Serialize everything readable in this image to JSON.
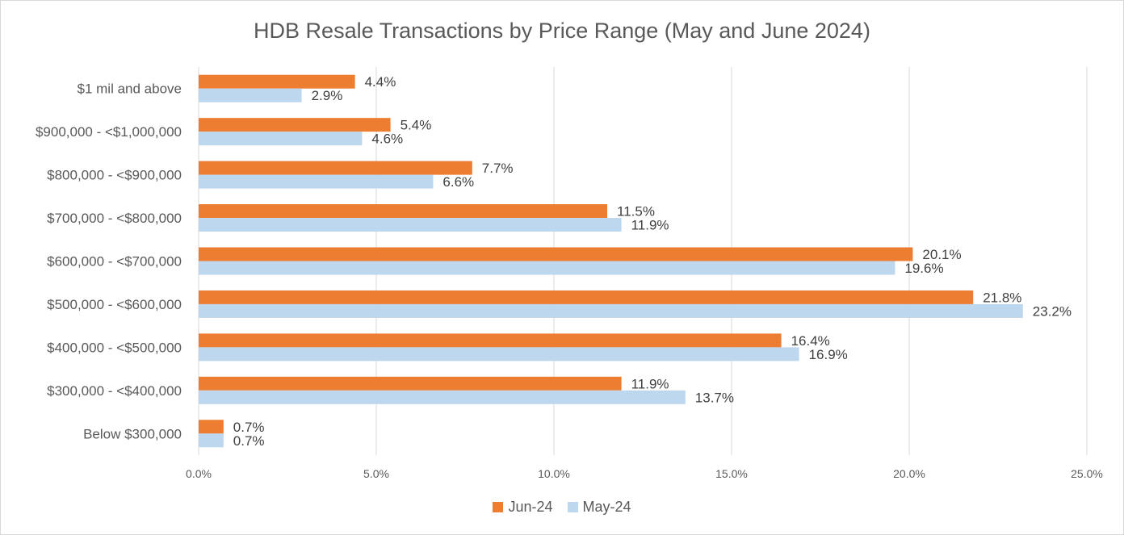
{
  "chart_data": {
    "type": "bar",
    "orientation": "horizontal",
    "title": "HDB Resale Transactions by Price Range (May and June 2024)",
    "categories": [
      "$1 mil and above",
      "$900,000 - <$1,000,000",
      "$800,000 - <$900,000",
      "$700,000 - <$800,000",
      "$600,000 - <$700,000",
      "$500,000 - <$600,000",
      "$400,000 - <$500,000",
      "$300,000 - <$400,000",
      "Below $300,000"
    ],
    "series": [
      {
        "name": "Jun-24",
        "color": "#ED7D31",
        "values": [
          4.4,
          5.4,
          7.7,
          11.5,
          20.1,
          21.8,
          16.4,
          11.9,
          0.7
        ]
      },
      {
        "name": "May-24",
        "color": "#BDD7EE",
        "values": [
          2.9,
          4.6,
          6.6,
          11.9,
          19.6,
          23.2,
          16.9,
          13.7,
          0.7
        ]
      }
    ],
    "xlim": [
      0,
      25
    ],
    "xticks": [
      0,
      5,
      10,
      15,
      20,
      25
    ],
    "tick_format": "0.0%",
    "data_label_format": "0.0%",
    "grid": "vertical",
    "legend_position": "bottom"
  }
}
